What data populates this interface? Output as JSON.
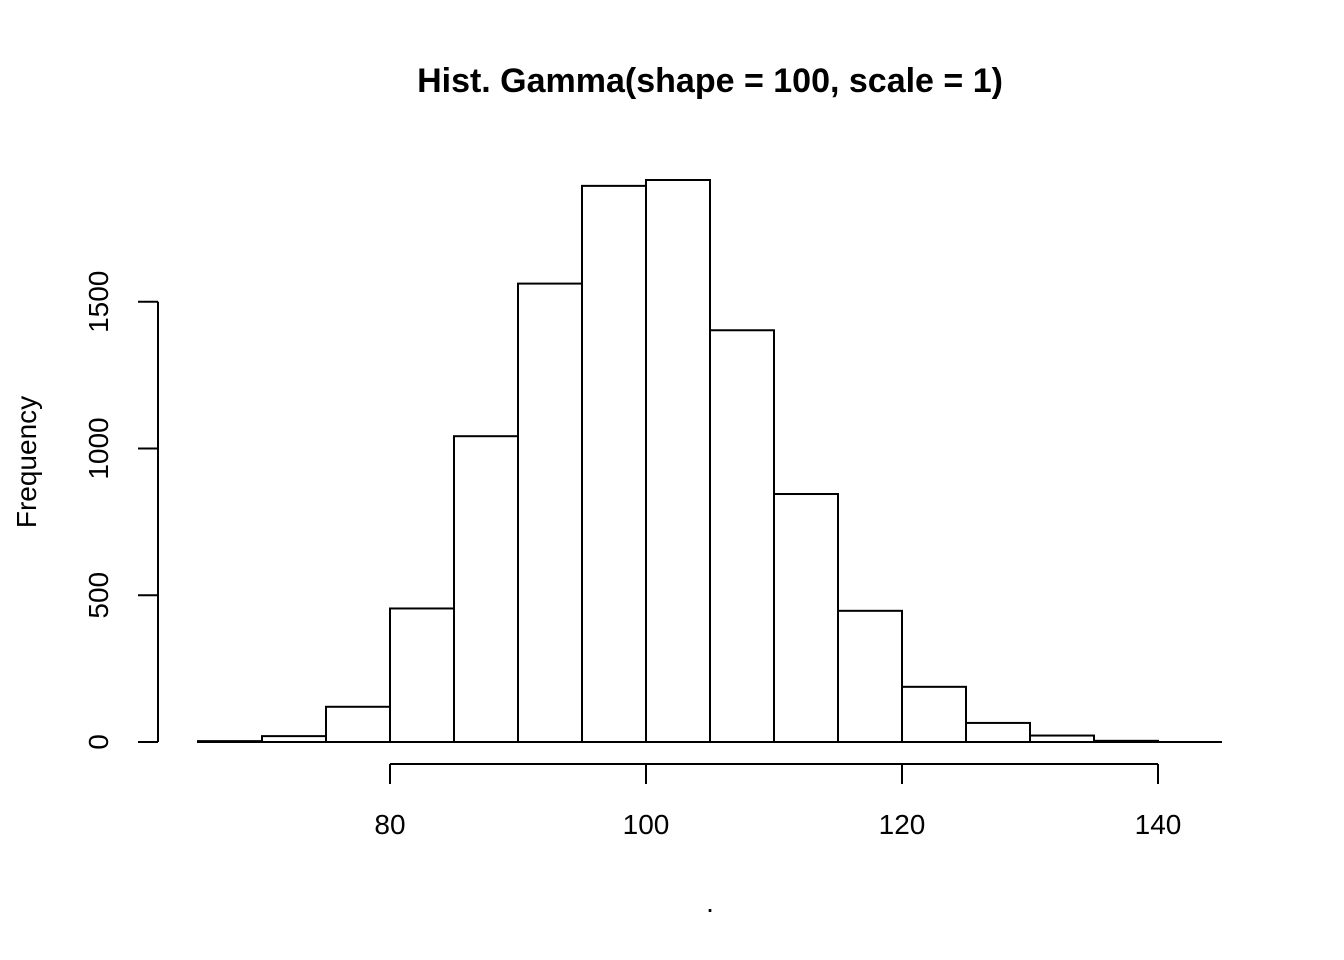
{
  "chart_data": {
    "type": "bar",
    "title": "Hist. Gamma(shape = 100, scale = 1)",
    "xlabel": ".",
    "ylabel": "Frequency",
    "bin_edges": [
      65,
      70,
      75,
      80,
      85,
      90,
      95,
      100,
      105,
      110,
      115,
      120,
      125,
      130,
      135,
      140,
      145
    ],
    "values": [
      3,
      20,
      120,
      455,
      1042,
      1562,
      1895,
      1915,
      1403,
      845,
      447,
      188,
      65,
      22,
      4,
      0
    ],
    "xlim": [
      65,
      145
    ],
    "ylim": [
      0,
      1915
    ],
    "x_ticks": [
      80,
      100,
      120,
      140
    ],
    "y_ticks": [
      0,
      500,
      1000,
      1500
    ],
    "grid": false,
    "legend": "none"
  }
}
